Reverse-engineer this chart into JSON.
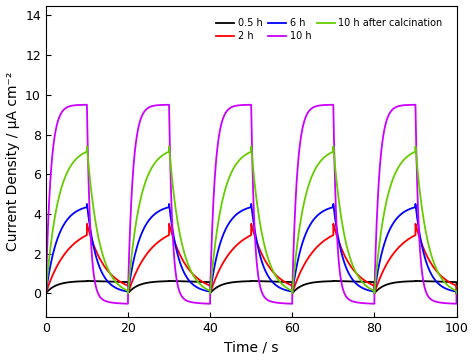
{
  "title": "",
  "xlabel": "Time / s",
  "ylabel": "Current Density / μA cm⁻²",
  "xlim": [
    0,
    100
  ],
  "ylim": [
    -1.2,
    14.5
  ],
  "yticks": [
    0,
    2,
    4,
    6,
    8,
    10,
    12,
    14
  ],
  "xticks": [
    0,
    20,
    40,
    60,
    80,
    100
  ],
  "period": 20,
  "on_start": 0,
  "on_duration": 10,
  "series": [
    {
      "label": "0.5 h",
      "color": "#000000",
      "steady": 0.62,
      "rise_tau": 2.5,
      "decay_tau": 100.0,
      "dark_level": 0.0,
      "off_level": 0.0,
      "spike": false
    },
    {
      "label": "2 h",
      "color": "#ff0000",
      "steady": 3.5,
      "rise_tau": 5.5,
      "decay_tau": 4.5,
      "dark_level": 0.0,
      "off_level": 0.0,
      "spike": false
    },
    {
      "label": "6 h",
      "color": "#0000ff",
      "steady": 4.5,
      "rise_tau": 3.0,
      "decay_tau": 2.5,
      "dark_level": 0.0,
      "off_level": 0.0,
      "spike": false
    },
    {
      "label": "10 h",
      "color": "#cc00ff",
      "steady": 9.5,
      "rise_tau": 1.2,
      "decay_tau": 0.8,
      "dark_level": 0.0,
      "off_level": -0.55,
      "off_recover_tau": 3.0,
      "spike": false
    },
    {
      "label": "10 h after calcination",
      "color": "#66cc00",
      "steady": 7.4,
      "rise_tau": 3.0,
      "decay_tau": 3.0,
      "dark_level": 0.0,
      "off_level": -0.15,
      "off_recover_tau": 2.5,
      "spike": false
    }
  ],
  "legend_ncol": 3,
  "background_color": "#ffffff",
  "figure_facecolor": "#ffffff",
  "linewidth": 1.3
}
